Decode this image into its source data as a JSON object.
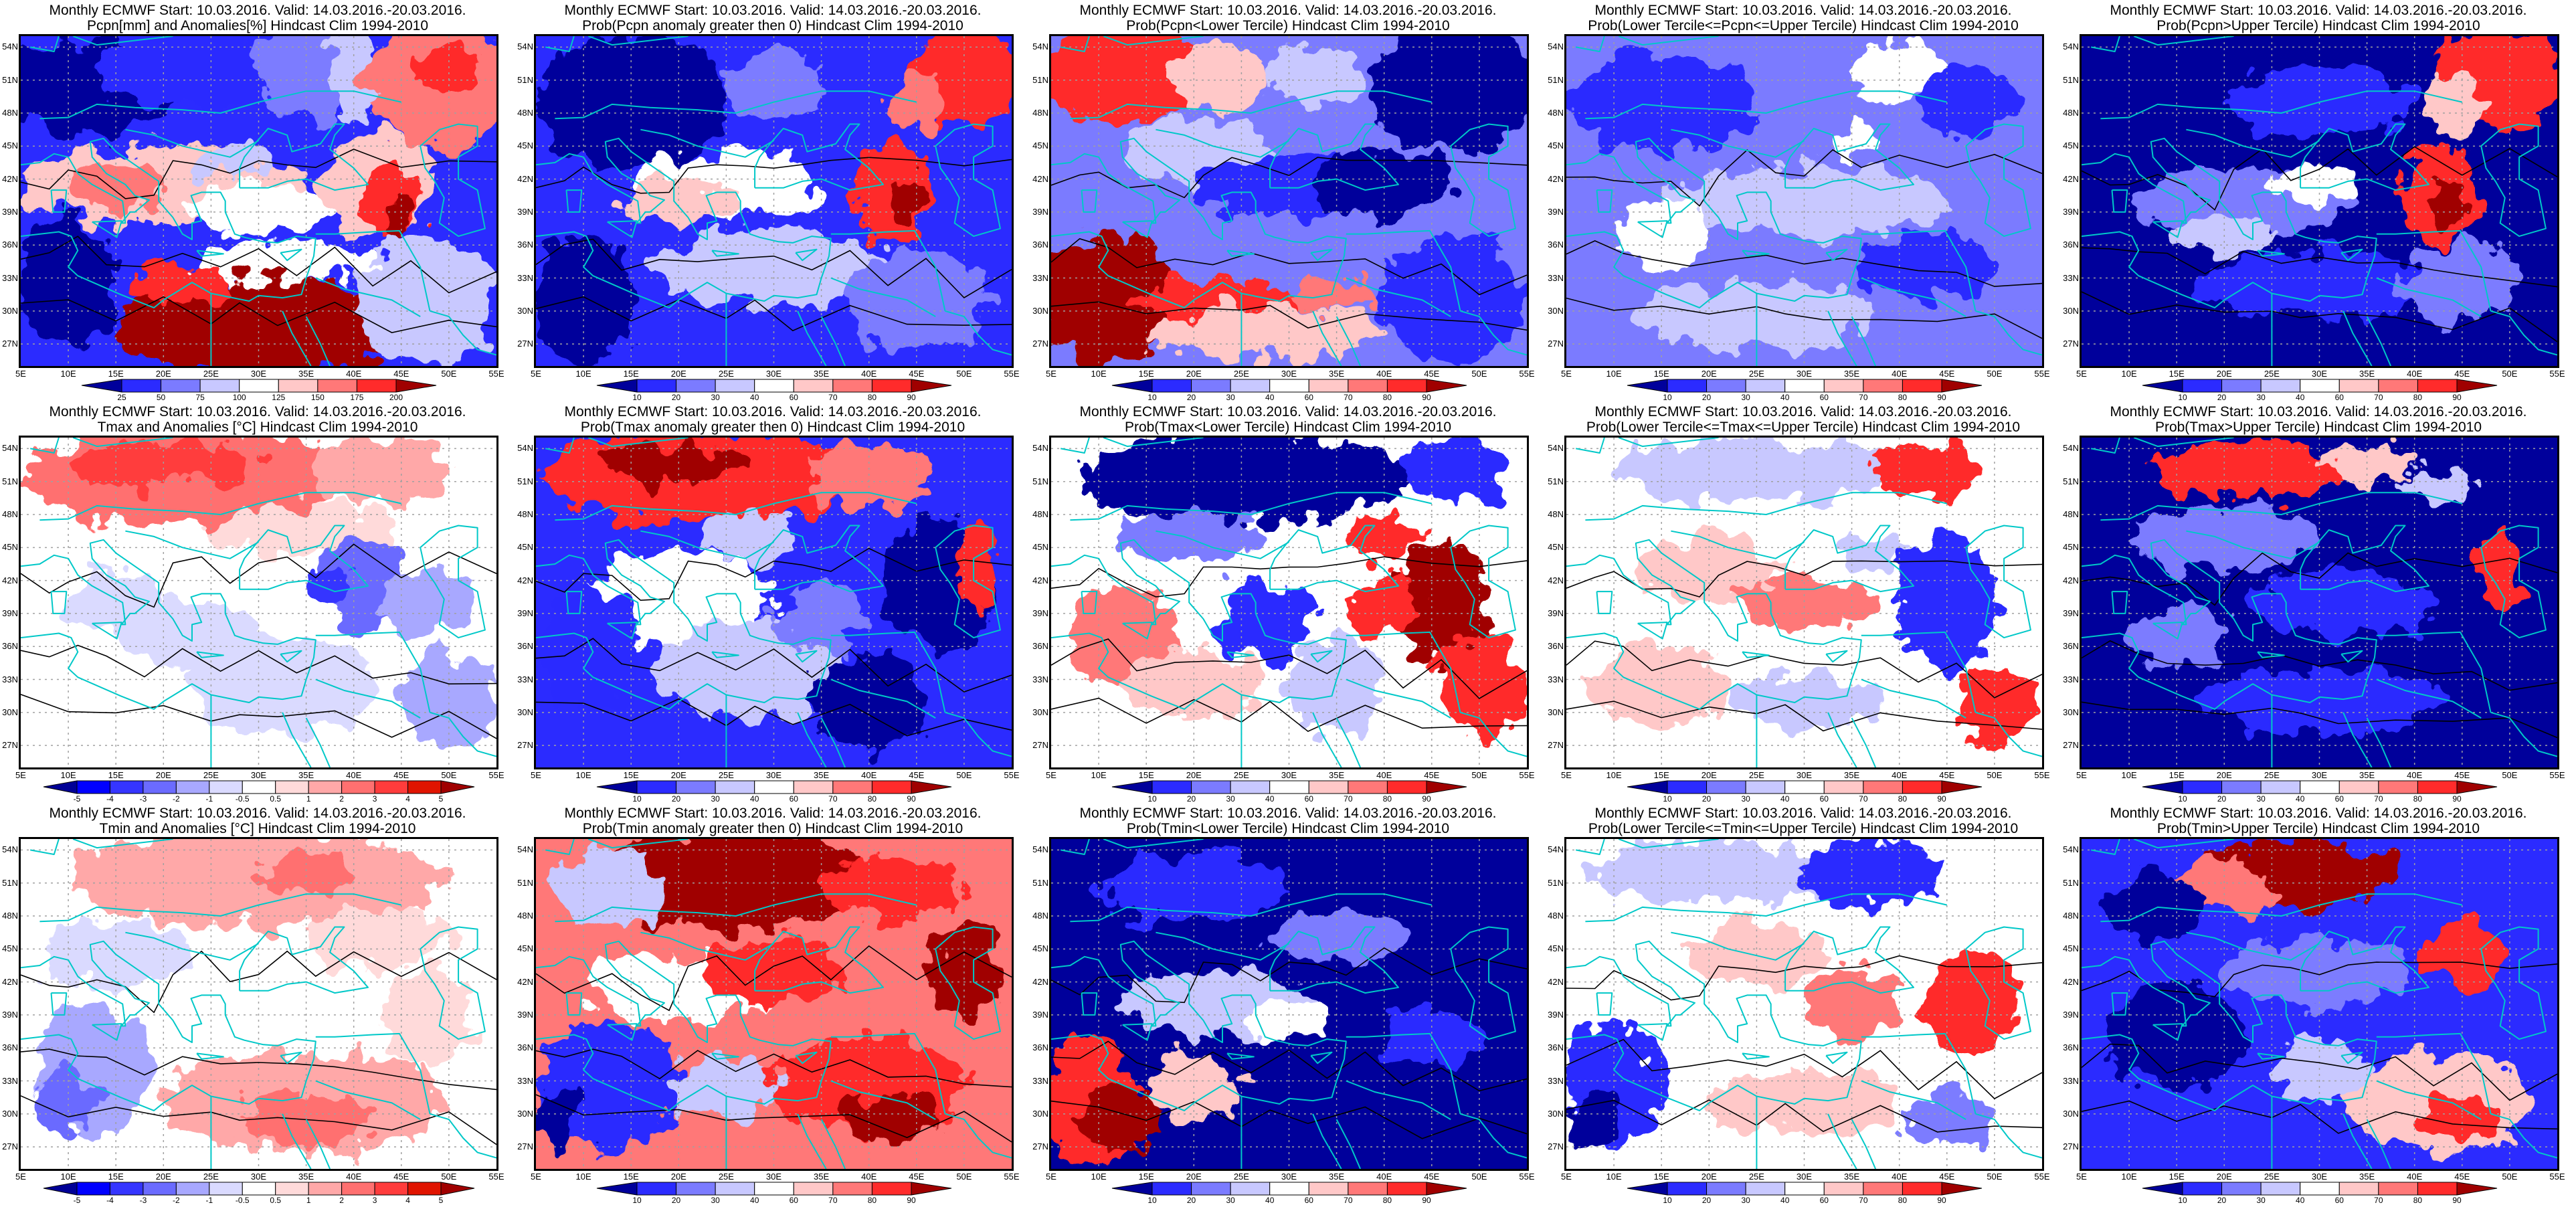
{
  "common": {
    "title_line1": "Monthly ECMWF Start: 10.03.2016. Valid: 14.03.2016.-20.03.2016.",
    "lon_labels": [
      "5E",
      "10E",
      "15E",
      "20E",
      "25E",
      "30E",
      "35E",
      "40E",
      "45E",
      "50E",
      "55E"
    ],
    "lat_labels": [
      "54N",
      "51N",
      "48N",
      "45N",
      "42N",
      "39N",
      "36N",
      "33N",
      "30N",
      "27N"
    ]
  },
  "colorbars": {
    "pcpn": {
      "labels": [
        "25",
        "50",
        "75",
        "100",
        "125",
        "150",
        "175",
        "200"
      ],
      "colors": [
        "#00009b",
        "#2b2bff",
        "#7b7bff",
        "#c8c8ff",
        "#ffffff",
        "#ffc8c8",
        "#ff7878",
        "#ff2b2b",
        "#a00000"
      ]
    },
    "prob": {
      "labels": [
        "10",
        "20",
        "30",
        "40",
        "60",
        "70",
        "80",
        "90"
      ],
      "colors": [
        "#00009b",
        "#2b2bff",
        "#7b7bff",
        "#c8c8ff",
        "#ffffff",
        "#ffc8c8",
        "#ff7878",
        "#ff2b2b",
        "#a00000"
      ]
    },
    "temp": {
      "labels": [
        "-5",
        "-4",
        "-3",
        "-2",
        "-1",
        "-0.5",
        "0.5",
        "1",
        "2",
        "3",
        "4",
        "5"
      ],
      "colors": [
        "#000096",
        "#0000ff",
        "#3535ff",
        "#6b6bff",
        "#a8a8ff",
        "#dadaff",
        "#ffffff",
        "#ffdada",
        "#ffa8a8",
        "#ff7070",
        "#ff3c3c",
        "#e01400",
        "#a00000"
      ]
    }
  },
  "map_colors": {
    "coastline": "#00c8c8",
    "contour": "#000000",
    "grid": "#a0a0a0"
  },
  "panels": [
    {
      "subtitle": "Pcpn[mm] and Anomalies[%] Hindcast Clim 1994-2010",
      "colorbar": "pcpn"
    },
    {
      "subtitle": "Prob(Pcpn anomaly greater then 0) Hindcast Clim 1994-2010",
      "colorbar": "prob"
    },
    {
      "subtitle": "Prob(Pcpn<Lower Tercile) Hindcast Clim 1994-2010",
      "colorbar": "prob"
    },
    {
      "subtitle": "Prob(Lower Tercile<=Pcpn<=Upper Tercile) Hindcast Clim 1994-2010",
      "colorbar": "prob"
    },
    {
      "subtitle": "Prob(Pcpn>Upper Tercile) Hindcast Clim 1994-2010",
      "colorbar": "prob"
    },
    {
      "subtitle": "Tmax and Anomalies [°C] Hindcast Clim 1994-2010",
      "colorbar": "temp"
    },
    {
      "subtitle": "Prob(Tmax anomaly greater then 0) Hindcast Clim 1994-2010",
      "colorbar": "prob"
    },
    {
      "subtitle": "Prob(Tmax<Lower Tercile) Hindcast Clim 1994-2010",
      "colorbar": "prob"
    },
    {
      "subtitle": "Prob(Lower Tercile<=Tmax<=Upper Tercile) Hindcast Clim 1994-2010",
      "colorbar": "prob"
    },
    {
      "subtitle": "Prob(Tmax>Upper Tercile) Hindcast Clim 1994-2010",
      "colorbar": "prob"
    },
    {
      "subtitle": "Tmin and Anomalies [°C] Hindcast Clim 1994-2010",
      "colorbar": "temp"
    },
    {
      "subtitle": "Prob(Tmin anomaly greater then 0) Hindcast Clim 1994-2010",
      "colorbar": "prob"
    },
    {
      "subtitle": "Prob(Tmin<Lower Tercile) Hindcast Clim 1994-2010",
      "colorbar": "prob"
    },
    {
      "subtitle": "Prob(Lower Tercile<=Tmin<=Upper Tercile) Hindcast Clim 1994-2010",
      "colorbar": "prob"
    },
    {
      "subtitle": "Prob(Tmin>Upper Tercile) Hindcast Clim 1994-2010",
      "colorbar": "prob"
    }
  ]
}
